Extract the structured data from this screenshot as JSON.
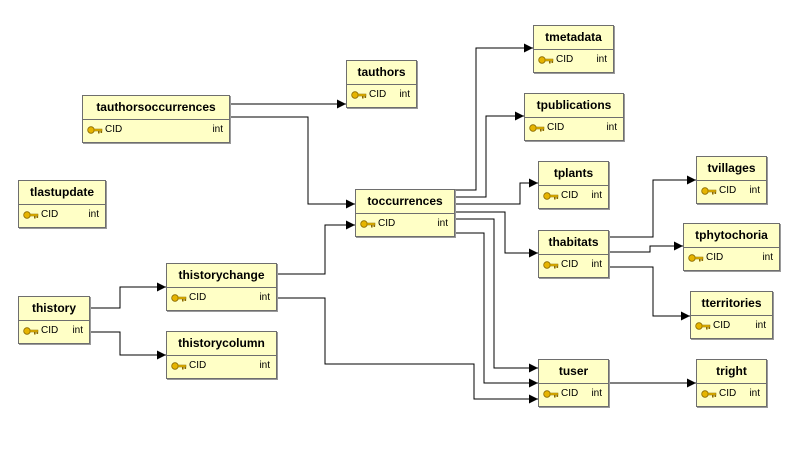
{
  "colors": {
    "table_fill": "#ffffc6",
    "border": "#6e6e6e",
    "line": "#000000",
    "key": "#e6b400"
  },
  "icons": {
    "primary_key": "key-icon"
  },
  "tables": {
    "tmetadata": {
      "name": "tmetadata",
      "column": "CID",
      "type": "int"
    },
    "tauthors": {
      "name": "tauthors",
      "column": "CID",
      "type": "int"
    },
    "tauthorsoccurrences": {
      "name": "tauthorsoccurrences",
      "column": "CID",
      "type": "int"
    },
    "tpublications": {
      "name": "tpublications",
      "column": "CID",
      "type": "int"
    },
    "tlastupdate": {
      "name": "tlastupdate",
      "column": "CID",
      "type": "int"
    },
    "tplants": {
      "name": "tplants",
      "column": "CID",
      "type": "int"
    },
    "tvillages": {
      "name": "tvillages",
      "column": "CID",
      "type": "int"
    },
    "toccurrences": {
      "name": "toccurrences",
      "column": "CID",
      "type": "int"
    },
    "thabitats": {
      "name": "thabitats",
      "column": "CID",
      "type": "int"
    },
    "tphytochoria": {
      "name": "tphytochoria",
      "column": "CID",
      "type": "int"
    },
    "thistorychange": {
      "name": "thistorychange",
      "column": "CID",
      "type": "int"
    },
    "thistory": {
      "name": "thistory",
      "column": "CID",
      "type": "int"
    },
    "tterritories": {
      "name": "tterritories",
      "column": "CID",
      "type": "int"
    },
    "thistorycolumn": {
      "name": "thistorycolumn",
      "column": "CID",
      "type": "int"
    },
    "tuser": {
      "name": "tuser",
      "column": "CID",
      "type": "int"
    },
    "tright": {
      "name": "tright",
      "column": "CID",
      "type": "int"
    }
  },
  "relationships": [
    {
      "from": "tauthorsoccurrences",
      "to": "tauthors"
    },
    {
      "from": "tauthorsoccurrences",
      "to": "toccurrences"
    },
    {
      "from": "toccurrences",
      "to": "tmetadata"
    },
    {
      "from": "toccurrences",
      "to": "tpublications"
    },
    {
      "from": "toccurrences",
      "to": "tplants"
    },
    {
      "from": "toccurrences",
      "to": "thabitats"
    },
    {
      "from": "toccurrences",
      "to": "tuser"
    },
    {
      "from": "thabitats",
      "to": "tvillages"
    },
    {
      "from": "thabitats",
      "to": "tphytochoria"
    },
    {
      "from": "thabitats",
      "to": "tterritories"
    },
    {
      "from": "thistory",
      "to": "thistorychange"
    },
    {
      "from": "thistory",
      "to": "thistorycolumn"
    },
    {
      "from": "thistorychange",
      "to": "toccurrences"
    },
    {
      "from": "thistorychange",
      "to": "tuser"
    },
    {
      "from": "tuser",
      "to": "tright"
    }
  ]
}
